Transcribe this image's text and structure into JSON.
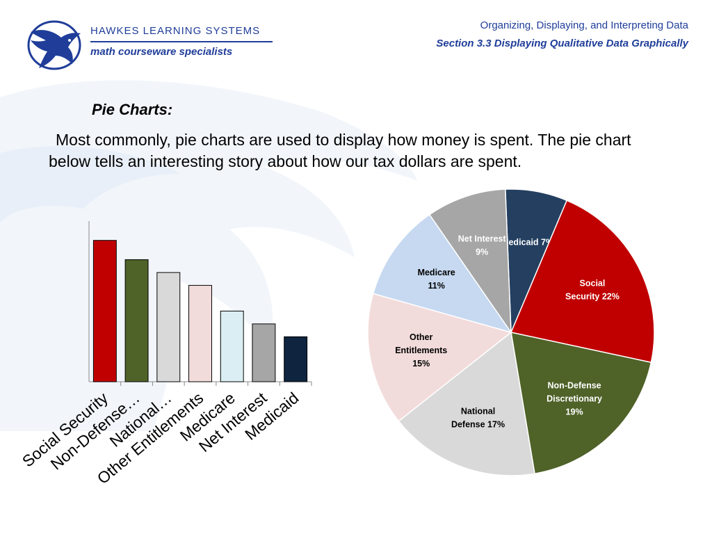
{
  "header": {
    "brand": "HAWKES  LEARNING  SYSTEMS",
    "tagline": "math courseware specialists",
    "topic": "Organizing, Displaying, and Interpreting Data",
    "section": "Section 3.3  Displaying Qualitative Data Graphically",
    "logo_icon": "eagle-logo-icon"
  },
  "content": {
    "heading": "Pie Charts:",
    "paragraph": "Most commonly, pie charts are used to display how money is spent.  The pie chart below tells an interesting story about how our tax dollars are spent."
  },
  "colors": {
    "brand_blue": "#1f3d99",
    "social_security": "#c00000",
    "non_defense": "#4f6228",
    "national_defense": "#d9d9d9",
    "other_entitlements": "#f2dcdb",
    "medicare": "#c6d9f1",
    "net_interest": "#a6a6a6",
    "medicaid": "#243f60"
  },
  "chart_data": [
    {
      "type": "bar",
      "categories": [
        "Social Security",
        "Non-Defense…",
        "National…",
        "Other Entitlements",
        "Medicare",
        "Net Interest",
        "Medicaid"
      ],
      "values": [
        22,
        19,
        17,
        15,
        11,
        9,
        7
      ],
      "bar_colors": [
        "#c00000",
        "#4f6228",
        "#d9d9d9",
        "#f2dcdb",
        "#dbeef4",
        "#a6a6a6",
        "#0f243e"
      ],
      "ylim": [
        0,
        25
      ]
    },
    {
      "type": "pie",
      "slices": [
        {
          "key": "medicaid",
          "label_lines": [
            "Medicaid 7%"
          ],
          "value": 7,
          "color": "#243f60",
          "text_color": "#ffffff"
        },
        {
          "key": "social_security",
          "label_lines": [
            "Social",
            "Security 22%"
          ],
          "value": 22,
          "color": "#c00000",
          "text_color": "#ffffff"
        },
        {
          "key": "non_defense",
          "label_lines": [
            "Non-Defense",
            "Discretionary",
            "19%"
          ],
          "value": 19,
          "color": "#4f6228",
          "text_color": "#ffffff"
        },
        {
          "key": "national_defense",
          "label_lines": [
            "National",
            "Defense 17%"
          ],
          "value": 17,
          "color": "#d9d9d9",
          "text_color": "#000000"
        },
        {
          "key": "other_entitlements",
          "label_lines": [
            "Other",
            "Entitlements",
            "15%"
          ],
          "value": 15,
          "color": "#f2dcdb",
          "text_color": "#000000"
        },
        {
          "key": "medicare",
          "label_lines": [
            "Medicare",
            "11%"
          ],
          "value": 11,
          "color": "#c6d9f1",
          "text_color": "#000000"
        },
        {
          "key": "net_interest",
          "label_lines": [
            "Net Interest",
            "9%"
          ],
          "value": 9,
          "color": "#a6a6a6",
          "text_color": "#ffffff"
        }
      ]
    }
  ]
}
